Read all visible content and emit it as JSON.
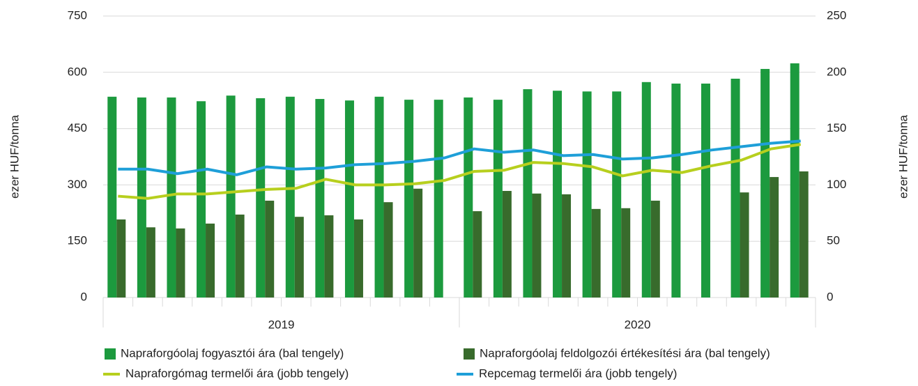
{
  "chart_data": {
    "type": "bar-line",
    "categories": [
      null,
      null,
      null,
      null,
      null,
      null,
      null,
      null,
      null,
      null,
      null,
      null,
      null,
      null,
      null,
      null,
      null,
      null,
      null,
      null,
      null,
      null,
      null,
      null
    ],
    "x_groups": [
      "2019",
      "2020"
    ],
    "y_label": "ezer HUF/tonna",
    "y2_label": "ezer HUF/tonna",
    "ylim": [
      0,
      750
    ],
    "yticks": [
      0,
      150,
      300,
      450,
      600,
      750
    ],
    "y2lim": [
      0,
      250
    ],
    "y2ticks": [
      0,
      50,
      100,
      150,
      200,
      250
    ],
    "grid": true,
    "legend": "bottom",
    "series": [
      {
        "name": "Napraforgóolaj fogyasztói ára (bal tengely)",
        "type": "bar",
        "color": "#1c9a3e",
        "values": [
          535,
          533,
          533,
          523,
          538,
          531,
          535,
          529,
          525,
          535,
          527,
          527,
          533,
          527,
          555,
          551,
          549,
          549,
          574,
          570,
          570,
          583,
          609,
          624
        ]
      },
      {
        "name": "Napraforgóolaj feldolgozói értékesítési ára (bal tengely)",
        "type": "bar",
        "color": "#386b2c",
        "values": [
          208,
          187,
          184,
          197,
          221,
          258,
          215,
          219,
          208,
          254,
          290,
          null,
          230,
          284,
          277,
          275,
          236,
          238,
          258,
          null,
          null,
          280,
          321,
          336
        ]
      },
      {
        "name": "Napraforgómag termelői ára (jobb tengely)",
        "type": "line",
        "axis": "y2",
        "color": "#b7cf1e",
        "values": [
          90,
          88,
          92,
          92,
          94,
          96,
          97,
          105,
          100,
          100,
          101,
          104,
          112,
          113,
          120,
          119,
          116,
          108,
          113,
          111,
          117,
          122,
          132,
          136
        ]
      },
      {
        "name": "Repcemag termelői ára (jobb tengely)",
        "type": "line",
        "axis": "y2",
        "color": "#1e9fd8",
        "values": [
          114,
          114,
          110,
          114,
          109,
          116,
          114,
          115,
          118,
          119,
          121,
          124,
          132,
          129,
          131,
          126,
          127,
          123,
          124,
          127,
          131,
          134,
          137,
          139
        ]
      }
    ]
  }
}
